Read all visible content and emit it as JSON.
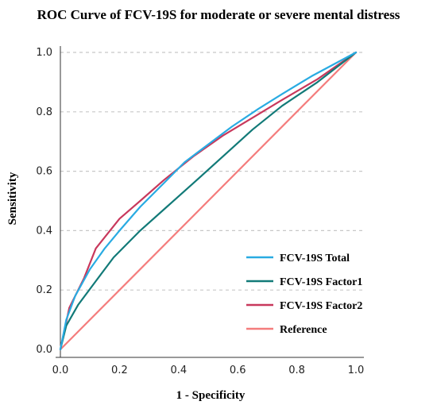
{
  "chart_data": {
    "type": "line",
    "title": "ROC Curve of FCV-19S for moderate or severe mental distress",
    "xlabel": "1 - Specificity",
    "ylabel": "Sensitivity",
    "xlim": [
      0,
      1
    ],
    "ylim": [
      0,
      1
    ],
    "x_ticks": [
      "0.0",
      "0.2",
      "0.4",
      "0.6",
      "0.8",
      "1.0"
    ],
    "y_ticks": [
      "0.0",
      "0.2",
      "0.4",
      "0.6",
      "0.8",
      "1.0"
    ],
    "grid": "horizontal dashed",
    "legend_position": "bottom-right",
    "series": [
      {
        "name": "FCV-19S Total",
        "color": "#29abe2",
        "x": [
          0,
          0.02,
          0.05,
          0.1,
          0.15,
          0.2,
          0.27,
          0.35,
          0.42,
          0.5,
          0.58,
          0.67,
          0.75,
          0.85,
          1.0
        ],
        "y": [
          0,
          0.1,
          0.18,
          0.27,
          0.34,
          0.4,
          0.48,
          0.56,
          0.63,
          0.69,
          0.75,
          0.81,
          0.86,
          0.92,
          1.0
        ]
      },
      {
        "name": "FCV-19S Factor1",
        "color": "#127a78",
        "x": [
          0,
          0.02,
          0.06,
          0.12,
          0.18,
          0.27,
          0.36,
          0.45,
          0.55,
          0.65,
          0.75,
          0.87,
          1.0
        ],
        "y": [
          0,
          0.08,
          0.15,
          0.23,
          0.31,
          0.4,
          0.48,
          0.56,
          0.65,
          0.74,
          0.82,
          0.9,
          1.0
        ]
      },
      {
        "name": "FCV-19S Factor2",
        "color": "#c8385c",
        "x": [
          0,
          0.03,
          0.08,
          0.12,
          0.2,
          0.27,
          0.35,
          0.45,
          0.55,
          0.65,
          0.75,
          0.87,
          1.0
        ],
        "y": [
          0,
          0.14,
          0.24,
          0.34,
          0.44,
          0.5,
          0.57,
          0.65,
          0.72,
          0.78,
          0.84,
          0.91,
          1.0
        ]
      },
      {
        "name": "Reference",
        "color": "#f47c7c",
        "x": [
          0,
          1
        ],
        "y": [
          0,
          1
        ]
      }
    ]
  }
}
